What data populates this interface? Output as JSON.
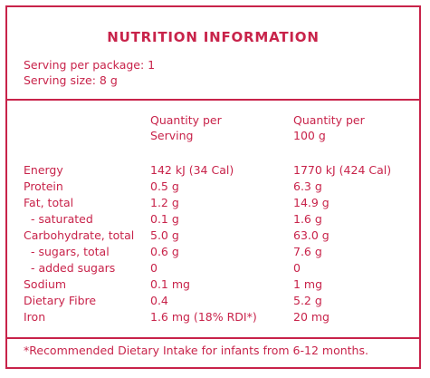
{
  "title": "NUTRITION INFORMATION",
  "serving": {
    "per_package": "Serving per package: 1",
    "size": "Serving size: 8 g"
  },
  "headers": {
    "col1_line1": "Quantity per",
    "col1_line2": "Serving",
    "col2_line1": "Quantity per",
    "col2_line2": "100 g"
  },
  "rows": [
    {
      "label": "Energy",
      "per_serving": "142 kJ (34 Cal)",
      "per_100g": "1770 kJ (424 Cal)"
    },
    {
      "label": "Protein",
      "per_serving": "0.5 g",
      "per_100g": "6.3 g"
    },
    {
      "label": "Fat, total",
      "per_serving": "1.2 g",
      "per_100g": "14.9 g"
    },
    {
      "label": "- saturated",
      "per_serving": "0.1 g",
      "per_100g": "1.6 g"
    },
    {
      "label": "Carbohydrate, total",
      "per_serving": "5.0 g",
      "per_100g": "63.0 g"
    },
    {
      "label": "- sugars, total",
      "per_serving": "0.6 g",
      "per_100g": "7.6 g"
    },
    {
      "label": "- added sugars",
      "per_serving": "0",
      "per_100g": "0"
    },
    {
      "label": "Sodium",
      "per_serving": "0.1 mg",
      "per_100g": "1 mg"
    },
    {
      "label": "Dietary Fibre",
      "per_serving": "0.4",
      "per_100g": "5.2 g"
    },
    {
      "label": "Iron",
      "per_serving": "1.6 mg (18% RDI*)",
      "per_100g": "20 mg"
    }
  ],
  "footnote": "*Recommended Dietary Intake for infants from 6-12 months.",
  "colors": {
    "accent": "#c8234a",
    "background": "#ffffff"
  }
}
